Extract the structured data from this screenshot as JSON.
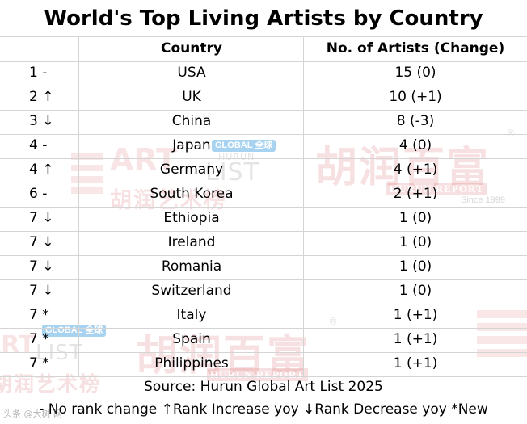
{
  "title": "World's Top Living Artists by Country",
  "columns": {
    "country": "Country",
    "count": "No. of Artists (Change)"
  },
  "rows": [
    {
      "rank": "1 -",
      "country": "USA",
      "count": "15  (0)"
    },
    {
      "rank": "2 ↑",
      "country": "UK",
      "count": "10  (+1)"
    },
    {
      "rank": "3 ↓",
      "country": "China",
      "count": "8  (-3)"
    },
    {
      "rank": "4 -",
      "country": "Japan",
      "count": "4  (0)"
    },
    {
      "rank": "4 ↑",
      "country": "Germany",
      "count": "4  (+1)"
    },
    {
      "rank": "6 -",
      "country": "South Korea",
      "count": "2  (+1)"
    },
    {
      "rank": "7 ↓",
      "country": "Ethiopia",
      "count": "1  (0)"
    },
    {
      "rank": "7 ↓",
      "country": "Ireland",
      "count": "1  (0)"
    },
    {
      "rank": "7 ↓",
      "country": "Romania",
      "count": "1  (0)"
    },
    {
      "rank": "7 ↓",
      "country": "Switzerland",
      "count": "1  (0)"
    },
    {
      "rank": "7 *",
      "country": "Italy",
      "count": "1  (+1)"
    },
    {
      "rank": "7 *",
      "country": "Spain",
      "count": "1  (+1)"
    },
    {
      "rank": "7 *",
      "country": "Philippines",
      "count": "1  (+1)"
    }
  ],
  "source": "Source: Hurun Global Art List 2025",
  "legend": "- No rank change  ↑Rank Increase yoy ↓Rank Decrease yoy  *New",
  "watermarks": {
    "chinese_name": "胡润百富",
    "art_list_chinese": "胡润艺术榜",
    "global_tag": "GLOBAL 全球",
    "art": "ART",
    "list": "LIST",
    "hurun": "HURUN",
    "hurun_report": "HURUN REPORT",
    "since": "Since 1999",
    "registered": "®",
    "footer_tag": "头条 @大树 网"
  }
}
